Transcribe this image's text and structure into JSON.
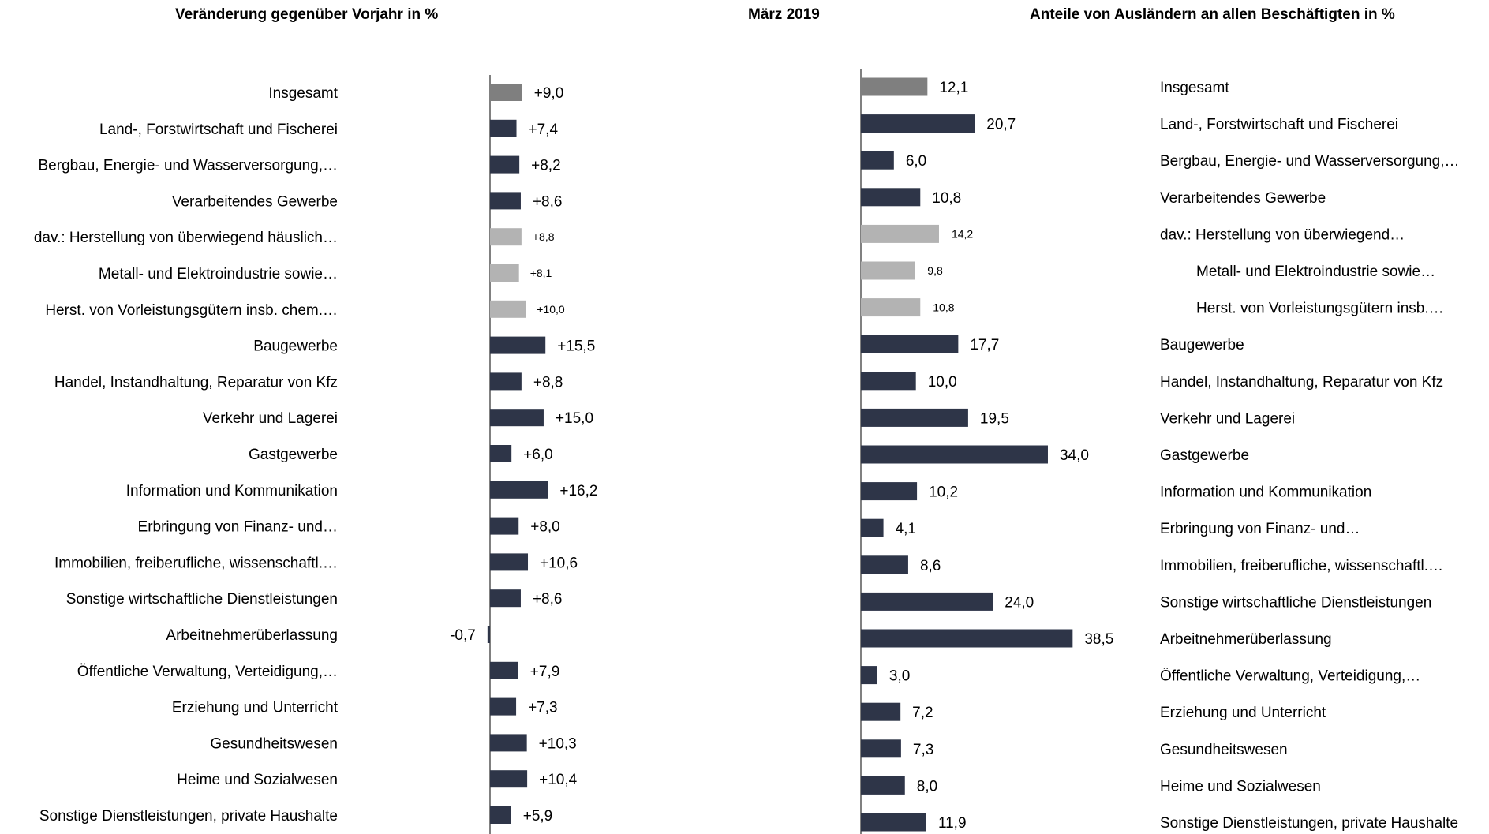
{
  "titles": {
    "left": "Veränderung gegenüber Vorjahr in %",
    "center": "März 2019",
    "right": "Anteile von Ausländern an allen Beschäftigten in %"
  },
  "colors": {
    "total": "#7f7f7f",
    "main": "#2e3548",
    "sub": "#b3b3b3",
    "axis": "#000000"
  },
  "chart_data": [
    {
      "type": "bar",
      "orientation": "horizontal",
      "title": "Veränderung gegenüber Vorjahr in %",
      "categories": [
        "Insgesamt",
        "Land-, Forstwirtschaft und Fischerei",
        "Bergbau, Energie- und Wasserversorgung,…",
        "Verarbeitendes Gewerbe",
        "dav.: Herstellung von überwiegend häuslich…",
        "Metall- und Elektroindustrie sowie…",
        "Herst. von Vorleistungsgütern insb. chem.…",
        "Baugewerbe",
        "Handel, Instandhaltung, Reparatur von Kfz",
        "Verkehr und Lagerei",
        "Gastgewerbe",
        "Information und Kommunikation",
        "Erbringung von Finanz- und…",
        "Immobilien, freiberufliche, wissenschaftl.…",
        "Sonstige wirtschaftliche Dienstleistungen",
        "Arbeitnehmerüberlassung",
        "Öffentliche Verwaltung, Verteidigung,…",
        "Erziehung und Unterricht",
        "Gesundheitswesen",
        "Heime und Sozialwesen",
        "Sonstige Dienstleistungen, private Haushalte"
      ],
      "values": [
        9.0,
        7.4,
        8.2,
        8.6,
        8.8,
        8.1,
        10.0,
        15.5,
        8.8,
        15.0,
        6.0,
        16.2,
        8.0,
        10.6,
        8.6,
        -0.7,
        7.9,
        7.3,
        10.3,
        10.4,
        5.9
      ],
      "value_labels": [
        "+9,0",
        "+7,4",
        "+8,2",
        "+8,6",
        "+8,8",
        "+8,1",
        "+10,0",
        "+15,5",
        "+8,8",
        "+15,0",
        "+6,0",
        "+16,2",
        "+8,0",
        "+10,6",
        "+8,6",
        "-0,7",
        "+7,9",
        "+7,3",
        "+10,3",
        "+10,4",
        "+5,9"
      ],
      "kinds": [
        "total",
        "main",
        "main",
        "main",
        "sub",
        "sub",
        "sub",
        "main",
        "main",
        "main",
        "main",
        "main",
        "main",
        "main",
        "main",
        "main",
        "main",
        "main",
        "main",
        "main",
        "main"
      ]
    },
    {
      "type": "bar",
      "orientation": "horizontal",
      "title": "Anteile von Ausländern an allen Beschäftigten in %",
      "categories": [
        "Insgesamt",
        "Land-, Forstwirtschaft und Fischerei",
        "Bergbau, Energie- und Wasserversorgung,…",
        "Verarbeitendes Gewerbe",
        "dav.: Herstellung von überwiegend…",
        "Metall- und Elektroindustrie sowie…",
        "Herst. von Vorleistungsgütern insb.…",
        "Baugewerbe",
        "Handel, Instandhaltung, Reparatur von Kfz",
        "Verkehr und Lagerei",
        "Gastgewerbe",
        "Information und Kommunikation",
        "Erbringung von Finanz- und…",
        "Immobilien, freiberufliche, wissenschaftl.…",
        "Sonstige wirtschaftliche Dienstleistungen",
        "Arbeitnehmerüberlassung",
        "Öffentliche Verwaltung, Verteidigung,…",
        "Erziehung und Unterricht",
        "Gesundheitswesen",
        "Heime und Sozialwesen",
        "Sonstige Dienstleistungen, private Haushalte"
      ],
      "values": [
        12.1,
        20.7,
        6.0,
        10.8,
        14.2,
        9.8,
        10.8,
        17.7,
        10.0,
        19.5,
        34.0,
        10.2,
        4.1,
        8.6,
        24.0,
        38.5,
        3.0,
        7.2,
        7.3,
        8.0,
        11.9
      ],
      "value_labels": [
        "12,1",
        "20,7",
        "6,0",
        "10,8",
        "14,2",
        "9,8",
        "10,8",
        "17,7",
        "10,0",
        "19,5",
        "34,0",
        "10,2",
        "4,1",
        "8,6",
        "24,0",
        "38,5",
        "3,0",
        "7,2",
        "7,3",
        "8,0",
        "11,9"
      ],
      "kinds": [
        "total",
        "main",
        "main",
        "main",
        "sub",
        "sub",
        "sub",
        "main",
        "main",
        "main",
        "main",
        "main",
        "main",
        "main",
        "main",
        "main",
        "main",
        "main",
        "main",
        "main",
        "main"
      ]
    }
  ]
}
